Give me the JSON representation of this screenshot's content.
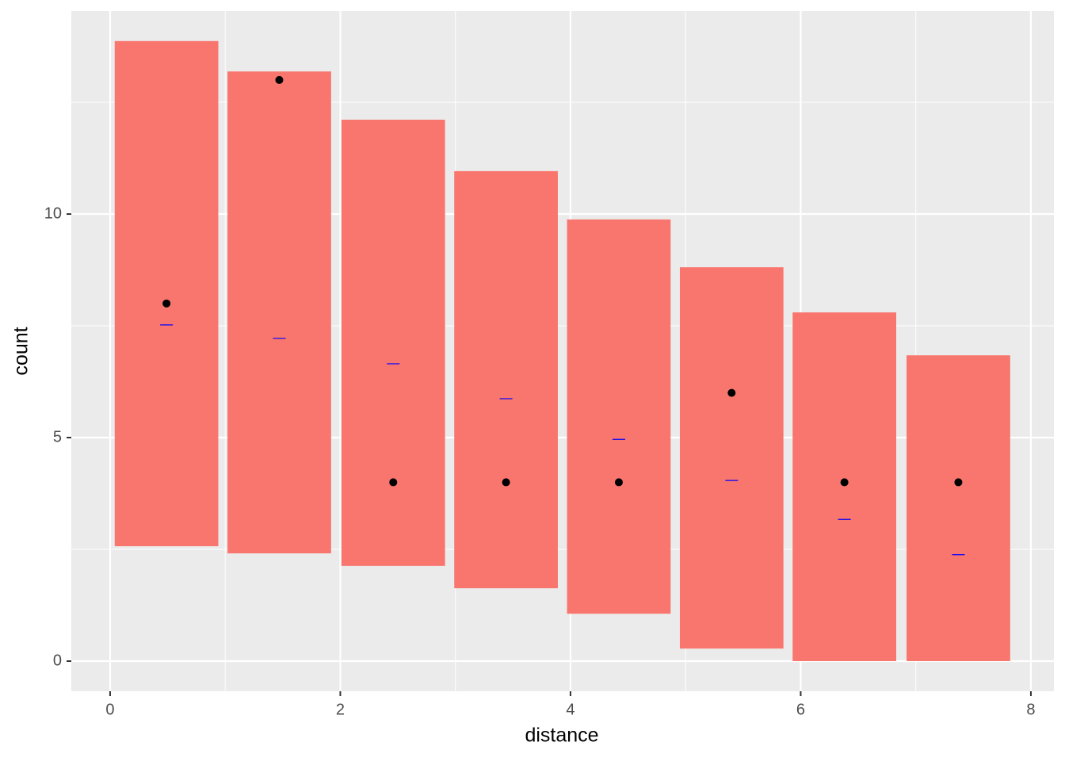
{
  "chart_data": {
    "type": "crossbar",
    "x_label": "distance",
    "y_label": "count",
    "x": [
      0.49,
      1.47,
      2.46,
      3.44,
      4.42,
      5.4,
      6.38,
      7.37
    ],
    "lower": [
      2.57,
      2.41,
      2.13,
      1.63,
      1.06,
      0.28,
      0,
      0
    ],
    "upper": [
      13.87,
      13.19,
      12.11,
      10.96,
      9.88,
      8.81,
      7.8,
      6.84
    ],
    "points": [
      8,
      13,
      4,
      4,
      4,
      6,
      4,
      4
    ],
    "means": [
      7.52,
      7.22,
      6.65,
      5.87,
      4.96,
      4.04,
      3.17,
      2.38
    ],
    "bar_color": "#F8766D",
    "point_color": "#000000",
    "mean_color": "#0000ff",
    "xlim": [
      -0.337,
      8.2
    ],
    "ylim": [
      -0.674,
      14.54
    ],
    "xticks": [
      0,
      2,
      4,
      6,
      8
    ],
    "yticks": [
      0,
      5,
      10
    ],
    "xminor": [
      1,
      3,
      5,
      7
    ],
    "yminor": [
      2.5,
      7.5,
      12.5
    ],
    "grid": true
  }
}
